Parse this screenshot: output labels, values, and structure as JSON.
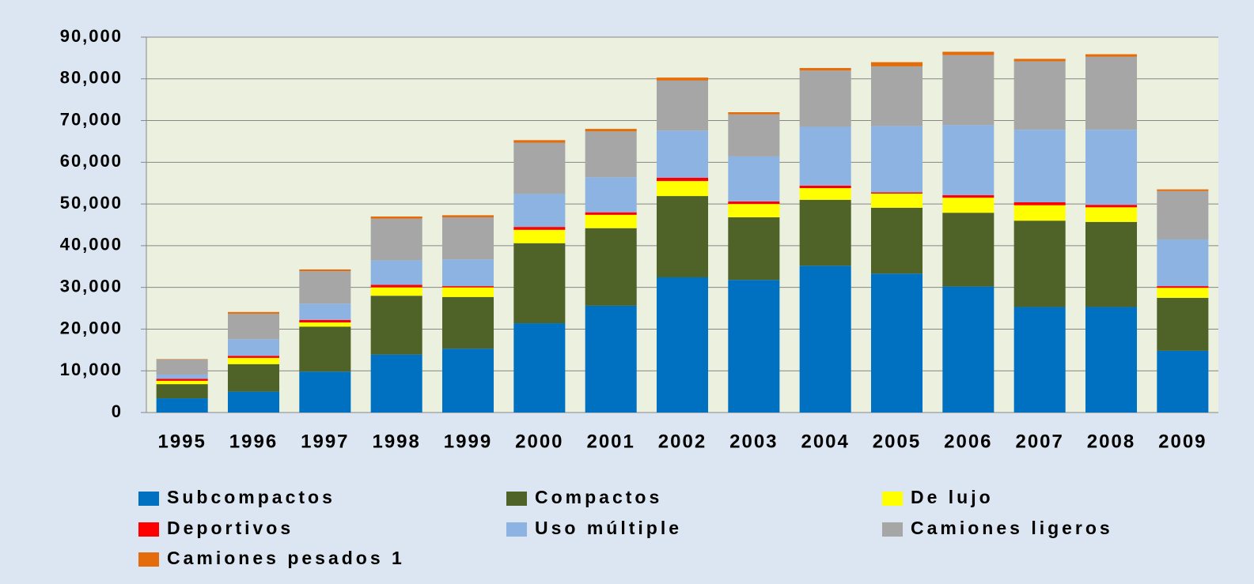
{
  "chart_data": {
    "type": "stacked-bar",
    "categories": [
      "1995",
      "1996",
      "1997",
      "1998",
      "1999",
      "2000",
      "2001",
      "2002",
      "2003",
      "2004",
      "2005",
      "2006",
      "2007",
      "2008",
      "2009"
    ],
    "series": [
      {
        "name": "Subcompactos",
        "color": "#0070c0",
        "values": [
          3400,
          5000,
          9800,
          13900,
          15300,
          21400,
          25600,
          32400,
          31800,
          35200,
          33300,
          30200,
          25300,
          25300,
          14800
        ]
      },
      {
        "name": "Compactos",
        "color": "#4f6228",
        "values": [
          3400,
          6600,
          10800,
          14100,
          12400,
          19200,
          18600,
          19500,
          15000,
          15800,
          15800,
          17700,
          20700,
          20400,
          12700
        ]
      },
      {
        "name": "De lujo",
        "color": "#ffff00",
        "values": [
          800,
          1500,
          1000,
          2000,
          2300,
          3200,
          3200,
          3600,
          3200,
          2800,
          3400,
          3600,
          3700,
          3500,
          2400
        ]
      },
      {
        "name": "Deportivos",
        "color": "#ff0000",
        "values": [
          500,
          500,
          600,
          600,
          300,
          700,
          600,
          800,
          600,
          600,
          300,
          600,
          700,
          600,
          400
        ]
      },
      {
        "name": "Uso múltiple",
        "color": "#8db3e2",
        "values": [
          1000,
          4000,
          3900,
          5900,
          6400,
          7900,
          8400,
          11300,
          10800,
          14100,
          15900,
          16800,
          17400,
          18000,
          11200
        ]
      },
      {
        "name": "Camiones ligeros",
        "color": "#a6a6a6",
        "values": [
          3600,
          6100,
          7800,
          10000,
          10100,
          12300,
          11000,
          12000,
          10100,
          13500,
          14300,
          16800,
          16400,
          17500,
          11600
        ]
      },
      {
        "name": "Camiones pesados 1",
        "color": "#e46c0a",
        "values": [
          100,
          400,
          400,
          500,
          500,
          600,
          600,
          700,
          500,
          600,
          1000,
          800,
          600,
          600,
          400
        ]
      }
    ],
    "ylim": [
      0,
      90000
    ],
    "yticks": [
      0,
      {
        "value": 10000,
        "label": "10,000"
      },
      {
        "value": 20000,
        "label": "20,000"
      },
      {
        "value": 30000,
        "label": "30,000"
      },
      {
        "value": 40000,
        "label": "40,000"
      },
      {
        "value": 50000,
        "label": "50,000"
      },
      {
        "value": 60000,
        "label": "60,000"
      },
      {
        "value": 70000,
        "label": "70,000"
      },
      {
        "value": 80000,
        "label": "80,000"
      },
      {
        "value": 90000,
        "label": "90,000"
      }
    ],
    "grid": true
  }
}
